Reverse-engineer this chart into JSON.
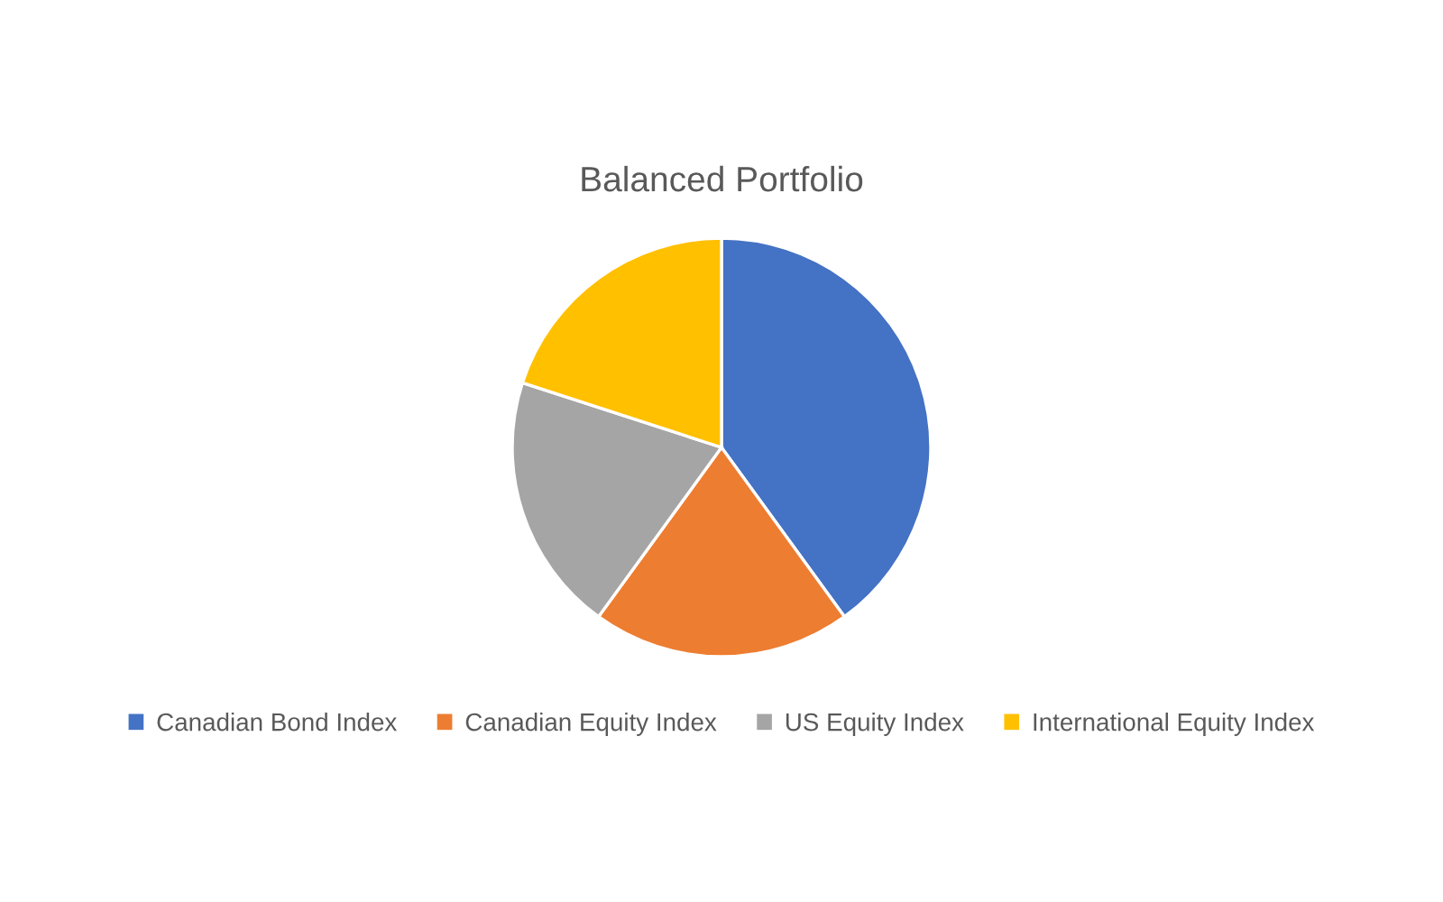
{
  "chart_data": {
    "type": "pie",
    "title": "Balanced Portfolio",
    "categories": [
      "Canadian Bond Index",
      "Canadian Equity Index",
      "US Equity Index",
      "International Equity Index"
    ],
    "values": [
      40,
      20,
      20,
      20
    ],
    "colors": [
      "#4472c4",
      "#ed7d31",
      "#a5a5a5",
      "#ffc000"
    ],
    "legend": "bottom"
  }
}
